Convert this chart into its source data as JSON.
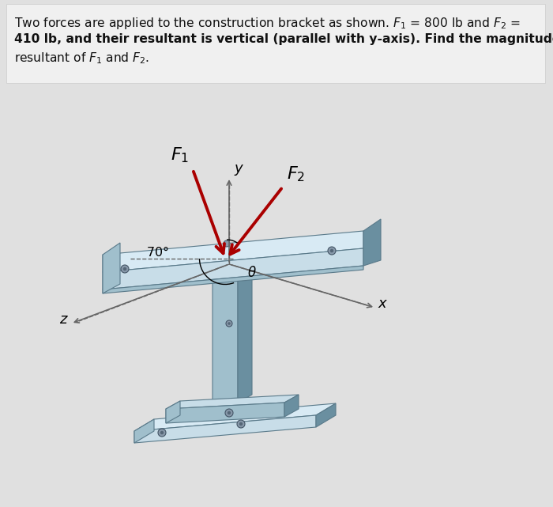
{
  "bg_color": "#e0e0e0",
  "text_color": "#111111",
  "bracket_light": "#c8dde8",
  "bracket_mid": "#a0bfcc",
  "bracket_dark": "#6a8fa0",
  "bracket_top": "#d8eaf4",
  "bracket_edge": "#5a7a8a",
  "bracket_accent": "#b0d0e0",
  "arrow_color": "#aa0000",
  "axis_color": "#666666",
  "fig_width": 7.0,
  "fig_height": 6.41,
  "dpi": 100
}
